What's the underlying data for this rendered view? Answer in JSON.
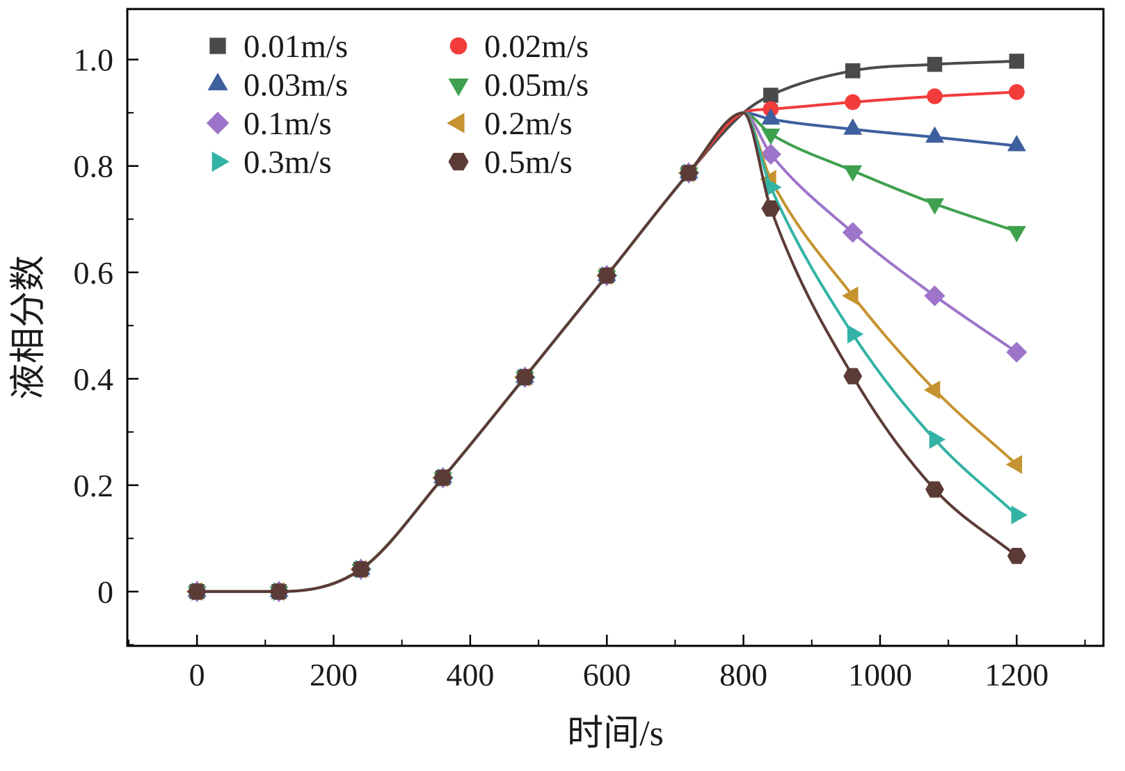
{
  "chart_data": {
    "type": "line",
    "title": "",
    "xlabel": "时间/s",
    "ylabel": "液相分数",
    "xlim": [
      -102,
      1327
    ],
    "ylim": [
      -0.102,
      1.095
    ],
    "xticks": [
      0,
      200,
      400,
      600,
      800,
      1000,
      1200
    ],
    "xtick_labels": [
      "0",
      "200",
      "400",
      "600",
      "800",
      "1000",
      "1200"
    ],
    "yticks": [
      0,
      0.2,
      0.4,
      0.6,
      0.8,
      1.0
    ],
    "ytick_labels": [
      "0",
      "0.2",
      "0.4",
      "0.6",
      "0.8",
      "1.0"
    ],
    "x_minor_step": 100,
    "y_minor_step": 0.1,
    "grid": false,
    "legend_position": "top-left-inside",
    "common_x": [
      0,
      120,
      240,
      360,
      480,
      600,
      720
    ],
    "common_y": [
      0.0,
      0.0,
      0.042,
      0.214,
      0.403,
      0.594,
      0.787
    ],
    "junction": {
      "x": 800,
      "y": 0.9
    },
    "post_x": [
      840,
      960,
      1080,
      1200
    ],
    "series": [
      {
        "name": "0.01m/s",
        "color": "#4a4a4a",
        "marker": "square",
        "post_y": [
          0.933,
          0.979,
          0.991,
          0.997
        ]
      },
      {
        "name": "0.02m/s",
        "color": "#f23b3b",
        "marker": "circle",
        "post_y": [
          0.907,
          0.92,
          0.931,
          0.939
        ]
      },
      {
        "name": "0.03m/s",
        "color": "#3d5f9e",
        "marker": "triangle-up",
        "post_y": [
          0.888,
          0.869,
          0.854,
          0.838
        ]
      },
      {
        "name": "0.05m/s",
        "color": "#3fa04e",
        "marker": "triangle-down",
        "post_y": [
          0.86,
          0.791,
          0.729,
          0.677
        ]
      },
      {
        "name": "0.1m/s",
        "color": "#9d74c9",
        "marker": "diamond",
        "post_y": [
          0.822,
          0.675,
          0.556,
          0.45
        ]
      },
      {
        "name": "0.2m/s",
        "color": "#c59330",
        "marker": "triangle-left",
        "post_y": [
          0.775,
          0.556,
          0.379,
          0.239
        ]
      },
      {
        "name": "0.3m/s",
        "color": "#33b3a6",
        "marker": "triangle-right",
        "post_y": [
          0.76,
          0.484,
          0.286,
          0.144
        ]
      },
      {
        "name": "0.5m/s",
        "color": "#5c3b36",
        "marker": "hexagon",
        "post_y": [
          0.72,
          0.405,
          0.192,
          0.067
        ]
      }
    ],
    "legend": {
      "columns": 2,
      "entries": [
        "0.01m/s",
        "0.02m/s",
        "0.03m/s",
        "0.05m/s",
        "0.1m/s",
        "0.2m/s",
        "0.3m/s",
        "0.5m/s"
      ]
    },
    "axis_color": "#000000",
    "text_color": "#1a1a1a"
  }
}
